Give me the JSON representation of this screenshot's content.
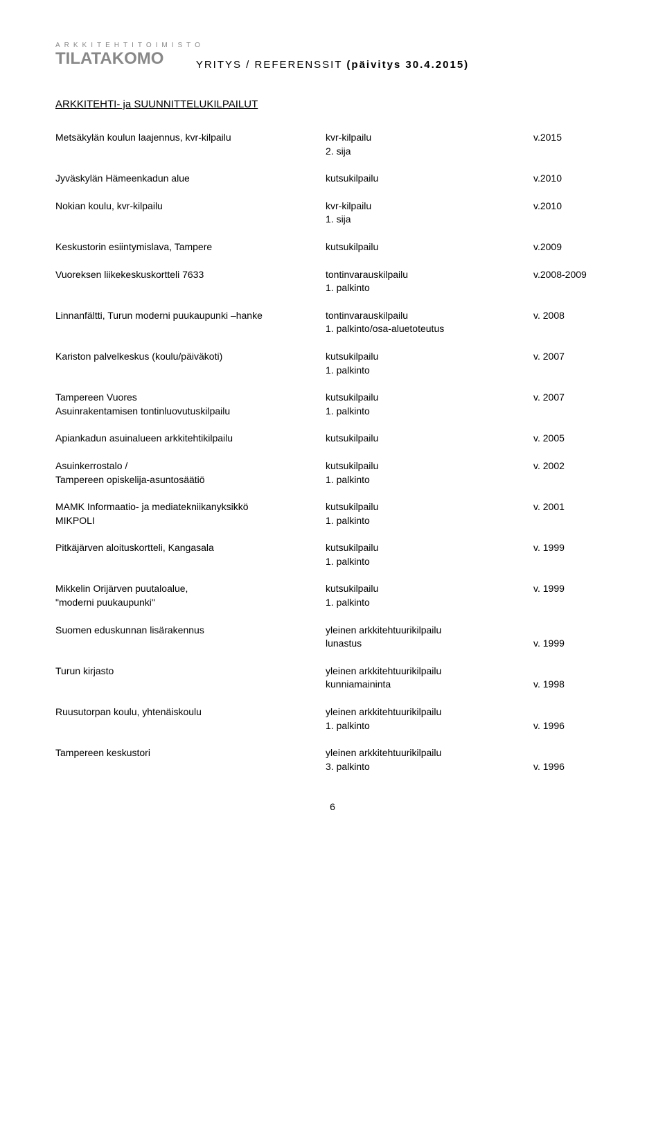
{
  "logo": {
    "line1": "ARKKITEHTITOIMISTO",
    "line2": "TILATAKOMO"
  },
  "doc_title": {
    "prefix": "YRITYS / REFERENSSIT ",
    "suffix": "(päivitys 30.4.2015)"
  },
  "section_title": "ARKKITEHTI- ja SUUNNITTELUKILPAILUT",
  "rows": [
    {
      "left_a": "Metsäkylän koulun laajennus, kvr-kilpailu",
      "left_b": "",
      "mid_a": "kvr-kilpailu",
      "mid_b": "2. sija",
      "right": "v.2015"
    },
    {
      "left_a": "Jyväskylän Hämeenkadun alue",
      "left_b": "",
      "mid_a": "kutsukilpailu",
      "mid_b": "",
      "right": "v.2010"
    },
    {
      "left_a": "Nokian koulu, kvr-kilpailu",
      "left_b": "",
      "mid_a": "kvr-kilpailu",
      "mid_b": "1. sija",
      "right": "v.2010"
    },
    {
      "left_a": "Keskustorin esiintymislava, Tampere",
      "left_b": "",
      "mid_a": "kutsukilpailu",
      "mid_b": "",
      "right": "v.2009"
    },
    {
      "left_a": "Vuoreksen liikekeskuskortteli 7633",
      "left_b": "",
      "mid_a": "tontinvarauskilpailu",
      "mid_b": "1. palkinto",
      "right": "v.2008-2009"
    },
    {
      "left_a": "Linnanfältti, Turun moderni puukaupunki –hanke",
      "left_b": "",
      "mid_a": "tontinvarauskilpailu",
      "mid_b": "1. palkinto/osa-aluetoteutus",
      "right": "v. 2008"
    },
    {
      "left_a": "Kariston palvelkeskus (koulu/päiväkoti)",
      "left_b": "",
      "mid_a": "kutsukilpailu",
      "mid_b": "1. palkinto",
      "right": "v. 2007"
    },
    {
      "left_a": "Tampereen Vuores",
      "left_b": "Asuinrakentamisen tontinluovutuskilpailu",
      "mid_a": "kutsukilpailu",
      "mid_b": "1. palkinto",
      "right": "v. 2007"
    },
    {
      "left_a": "Apiankadun asuinalueen arkkitehtikilpailu",
      "left_b": "",
      "mid_a": "kutsukilpailu",
      "mid_b": "",
      "right": "v. 2005"
    },
    {
      "left_a": "Asuinkerrostalo /",
      "left_b": "Tampereen opiskelija-asuntosäätiö",
      "mid_a": "kutsukilpailu",
      "mid_b": "1. palkinto",
      "right": "v. 2002"
    },
    {
      "left_a": "MAMK Informaatio- ja mediatekniikanyksikkö",
      "left_b": "MIKPOLI",
      "mid_a": "kutsukilpailu",
      "mid_b": "1. palkinto",
      "right": "v. 2001"
    },
    {
      "left_a": "Pitkäjärven aloituskortteli, Kangasala",
      "left_b": "",
      "mid_a": "kutsukilpailu",
      "mid_b": "1. palkinto",
      "right": "v. 1999"
    },
    {
      "left_a": "Mikkelin Orijärven puutaloalue,",
      "left_b": "\"moderni puukaupunki\"",
      "mid_a": "kutsukilpailu",
      "mid_b": "1. palkinto",
      "right": "v. 1999"
    },
    {
      "left_a": "Suomen eduskunnan lisärakennus",
      "left_b": "",
      "mid_a": "yleinen arkkitehtuurikilpailu",
      "mid_b": "lunastus",
      "right": "",
      "right_b": "v. 1999"
    },
    {
      "left_a": "Turun kirjasto",
      "left_b": "",
      "mid_a": "yleinen arkkitehtuurikilpailu",
      "mid_b": "kunniamaininta",
      "right": "",
      "right_b": "v. 1998"
    },
    {
      "left_a": "Ruusutorpan koulu, yhtenäiskoulu",
      "left_b": "",
      "mid_a": "yleinen arkkitehtuurikilpailu",
      "mid_b": "1. palkinto",
      "right": "",
      "right_b": "v. 1996"
    },
    {
      "left_a": "Tampereen keskustori",
      "left_b": "",
      "mid_a": "yleinen arkkitehtuurikilpailu",
      "mid_b": "3. palkinto",
      "right": "",
      "right_b": "v. 1996"
    }
  ],
  "page_number": "6",
  "styles": {
    "body_font_family": "Arial, Helvetica, sans-serif",
    "background_color": "#ffffff",
    "text_color": "#000000",
    "logo_color": "#888888",
    "logo_line1_fontsize": 10,
    "logo_line1_letterspacing": 6,
    "logo_line2_fontsize": 24,
    "doc_title_fontsize": 15,
    "doc_title_letterspacing": 2,
    "section_title_fontsize": 15,
    "row_fontsize": 14,
    "col_left_width": 380,
    "col_mid_width": 300
  }
}
